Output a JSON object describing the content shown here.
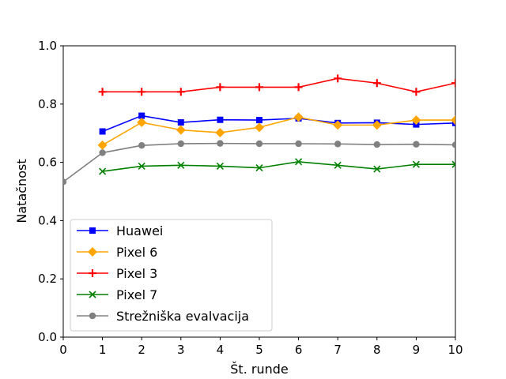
{
  "chart_data": {
    "type": "line",
    "title": "",
    "xlabel": "Št. runde",
    "ylabel": "Natačnost",
    "xlim": [
      0,
      10
    ],
    "ylim": [
      0.0,
      1.0
    ],
    "x_ticks": [
      "0",
      "1",
      "2",
      "3",
      "4",
      "5",
      "6",
      "7",
      "8",
      "9",
      "10"
    ],
    "y_ticks": [
      "0.0",
      "0.2",
      "0.4",
      "0.6",
      "0.8",
      "1.0"
    ],
    "grid": false,
    "legend_position": "lower-left",
    "series": [
      {
        "name": "Huawei",
        "color": "#0000ff",
        "marker": "square",
        "x": [
          1,
          2,
          3,
          4,
          5,
          6,
          7,
          8,
          9,
          10
        ],
        "values": [
          0.706,
          0.76,
          0.737,
          0.746,
          0.745,
          0.751,
          0.735,
          0.736,
          0.73,
          0.735
        ]
      },
      {
        "name": "Pixel 6",
        "color": "#ffa500",
        "marker": "diamond",
        "x": [
          1,
          2,
          3,
          4,
          5,
          6,
          7,
          8,
          9,
          10
        ],
        "values": [
          0.659,
          0.737,
          0.711,
          0.702,
          0.72,
          0.755,
          0.728,
          0.728,
          0.745,
          0.745
        ]
      },
      {
        "name": "Pixel 3",
        "color": "#ff0000",
        "marker": "plus",
        "x": [
          1,
          2,
          3,
          4,
          5,
          6,
          7,
          8,
          9,
          10
        ],
        "values": [
          0.842,
          0.842,
          0.842,
          0.858,
          0.858,
          0.858,
          0.888,
          0.872,
          0.842,
          0.872
        ]
      },
      {
        "name": "Pixel 7",
        "color": "#008000",
        "marker": "x",
        "x": [
          1,
          2,
          3,
          4,
          5,
          6,
          7,
          8,
          9,
          10
        ],
        "values": [
          0.569,
          0.587,
          0.59,
          0.587,
          0.581,
          0.602,
          0.59,
          0.577,
          0.593,
          0.593
        ]
      },
      {
        "name": "Strežniška evalvacija",
        "color": "#808080",
        "marker": "circle",
        "x": [
          0,
          1,
          2,
          3,
          4,
          5,
          6,
          7,
          8,
          9,
          10
        ],
        "values": [
          0.533,
          0.633,
          0.658,
          0.664,
          0.665,
          0.664,
          0.664,
          0.663,
          0.661,
          0.662,
          0.66
        ]
      }
    ]
  }
}
